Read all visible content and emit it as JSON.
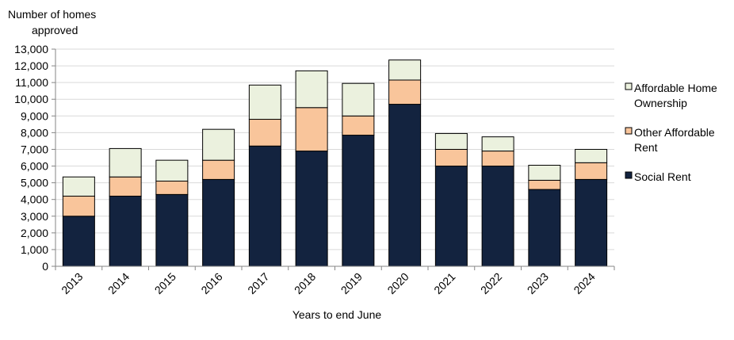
{
  "chart_data": {
    "type": "bar",
    "stacked": true,
    "ylabel": [
      "Number of homes",
      "approved"
    ],
    "xlabel": "Years to end June",
    "categories": [
      "2013",
      "2014",
      "2015",
      "2016",
      "2017",
      "2018",
      "2019",
      "2020",
      "2021",
      "2022",
      "2023",
      "2024"
    ],
    "ylim": [
      0,
      13000
    ],
    "yticks": [
      0,
      1000,
      2000,
      3000,
      4000,
      5000,
      6000,
      7000,
      8000,
      9000,
      10000,
      11000,
      12000,
      13000
    ],
    "ytick_labels": [
      "0",
      "1,000",
      "2,000",
      "3,000",
      "4,000",
      "5,000",
      "6,000",
      "7,000",
      "8,000",
      "9,000",
      "10,000",
      "11,000",
      "12,000",
      "13,000"
    ],
    "grid": true,
    "legend_position": "right",
    "series": [
      {
        "name": "Social Rent",
        "color": "#13233f",
        "values": [
          3000,
          4200,
          4300,
          5200,
          7200,
          6900,
          7850,
          9700,
          6000,
          6000,
          4600,
          5200
        ]
      },
      {
        "name": "Other Affordable Rent",
        "color": "#f9c59b",
        "values": [
          1200,
          1150,
          800,
          1150,
          1600,
          2600,
          1150,
          1450,
          1000,
          900,
          550,
          1000
        ]
      },
      {
        "name": "Affordable Home Ownership",
        "color": "#ebf1de",
        "values": [
          1150,
          1700,
          1250,
          1850,
          2050,
          2200,
          1950,
          1200,
          950,
          850,
          900,
          800
        ]
      }
    ],
    "legend": [
      {
        "lines": [
          "Affordable Home",
          "Ownership"
        ],
        "series": 2
      },
      {
        "lines": [
          "Other Affordable",
          "Rent"
        ],
        "series": 1
      },
      {
        "lines": [
          "Social Rent"
        ],
        "series": 0
      }
    ]
  }
}
